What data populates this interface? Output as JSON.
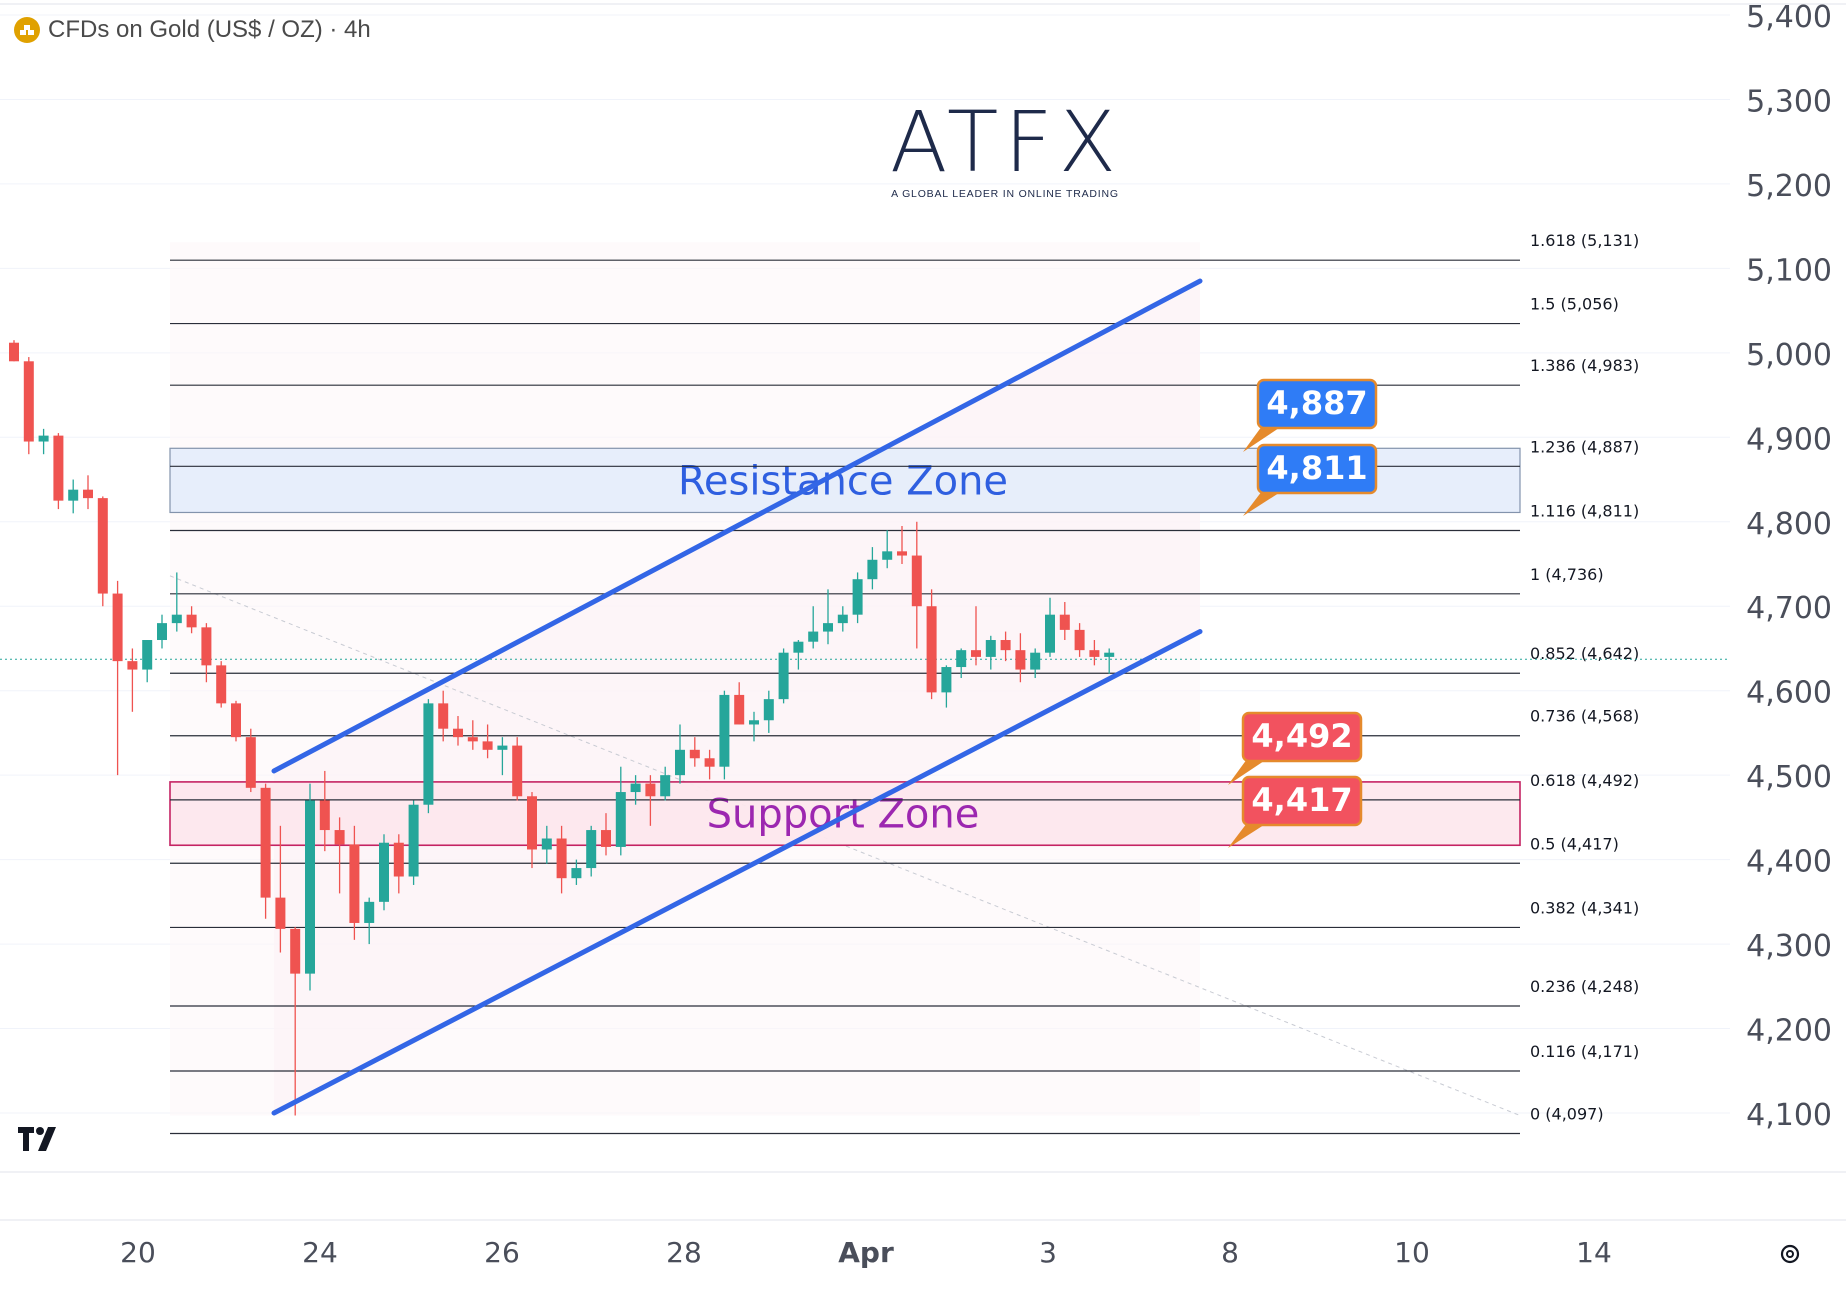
{
  "header": {
    "symbol_label": "CFDs on Gold (US$ / OZ) · 4h",
    "icon": "gold-bars-icon"
  },
  "logo": {
    "brand": "ATFX",
    "tagline": "A GLOBAL LEADER IN ONLINE TRADING"
  },
  "colors": {
    "up": "#26a69a",
    "down": "#ef5350",
    "trend_line": "#3366e6",
    "resistance_fill": "#e6eefb",
    "support_fill": "#fde8ee",
    "resistance_text": "#2f5fe0",
    "support_text": "#9c27b0",
    "label_blue": "#2f7cf6",
    "label_red": "#f2525f",
    "label_border": "#e58a2c"
  },
  "chart_data": {
    "type": "candlestick",
    "title": "CFDs on Gold (US$ / OZ) · 4h",
    "y_axis": {
      "ticks": [
        5400,
        5300,
        5200,
        5100,
        5000,
        4900,
        4800,
        4700,
        4600,
        4500,
        4400,
        4300,
        4200,
        4100
      ],
      "range": [
        4000,
        5450
      ]
    },
    "x_axis": {
      "ticks": [
        "20",
        "24",
        "26",
        "28",
        "Apr",
        "3",
        "8",
        "10",
        "14"
      ]
    },
    "current_price": 4642,
    "fibonacci_levels": [
      {
        "label": "1.618 (5,131)",
        "value": 5131
      },
      {
        "label": "1.5 (5,056)",
        "value": 5056
      },
      {
        "label": "1.386 (4,983)",
        "value": 4983
      },
      {
        "label": "1.236 (4,887)",
        "value": 4887
      },
      {
        "label": "1.116 (4,811)",
        "value": 4811
      },
      {
        "label": "1 (4,736)",
        "value": 4736
      },
      {
        "label": "0.852 (4,642)",
        "value": 4642
      },
      {
        "label": "0.736 (4,568)",
        "value": 4568
      },
      {
        "label": "0.618 (4,492)",
        "value": 4492
      },
      {
        "label": "0.5 (4,417)",
        "value": 4417
      },
      {
        "label": "0.382 (4,341)",
        "value": 4341
      },
      {
        "label": "0.236 (4,248)",
        "value": 4248
      },
      {
        "label": "0.116 (4,171)",
        "value": 4171
      },
      {
        "label": "0 (4,097)",
        "value": 4097
      }
    ],
    "zones": [
      {
        "name": "Resistance Zone",
        "from": 4811,
        "to": 4887
      },
      {
        "name": "Support Zone",
        "from": 4417,
        "to": 4492
      }
    ],
    "price_labels": [
      {
        "text": "4,887",
        "value": 4887,
        "kind": "resistance"
      },
      {
        "text": "4,811",
        "value": 4811,
        "kind": "resistance"
      },
      {
        "text": "4,492",
        "value": 4492,
        "kind": "support"
      },
      {
        "text": "4,417",
        "value": 4417,
        "kind": "support"
      }
    ],
    "channel": {
      "lower": [
        [
          0,
          4100
        ],
        [
          39.3,
          4670
        ]
      ],
      "upper": [
        [
          0,
          4505
        ],
        [
          39.3,
          5085
        ]
      ]
    },
    "candles_index_note": "index 0 = first candle at left edge, ~6 candles per day",
    "candles": [
      [
        5012,
        5015,
        4990,
        4990
      ],
      [
        4990,
        4995,
        4880,
        4895
      ],
      [
        4895,
        4910,
        4880,
        4902
      ],
      [
        4902,
        4905,
        4815,
        4825
      ],
      [
        4825,
        4850,
        4810,
        4838
      ],
      [
        4838,
        4855,
        4815,
        4828
      ],
      [
        4828,
        4830,
        4700,
        4715
      ],
      [
        4715,
        4730,
        4500,
        4635
      ],
      [
        4635,
        4650,
        4575,
        4625
      ],
      [
        4625,
        4660,
        4610,
        4660
      ],
      [
        4660,
        4690,
        4650,
        4680
      ],
      [
        4680,
        4740,
        4670,
        4690
      ],
      [
        4690,
        4700,
        4668,
        4675
      ],
      [
        4675,
        4680,
        4610,
        4630
      ],
      [
        4630,
        4635,
        4580,
        4585
      ],
      [
        4585,
        4588,
        4540,
        4545
      ],
      [
        4545,
        4555,
        4480,
        4485
      ],
      [
        4485,
        4490,
        4330,
        4355
      ],
      [
        4355,
        4440,
        4290,
        4318
      ],
      [
        4318,
        4320,
        4097,
        4265
      ],
      [
        4265,
        4490,
        4245,
        4470
      ],
      [
        4470,
        4505,
        4410,
        4435
      ],
      [
        4435,
        4450,
        4360,
        4418
      ],
      [
        4418,
        4440,
        4305,
        4325
      ],
      [
        4325,
        4355,
        4300,
        4350
      ],
      [
        4350,
        4430,
        4340,
        4420
      ],
      [
        4420,
        4430,
        4360,
        4380
      ],
      [
        4380,
        4470,
        4370,
        4465
      ],
      [
        4465,
        4590,
        4455,
        4585
      ],
      [
        4585,
        4600,
        4540,
        4555
      ],
      [
        4555,
        4570,
        4535,
        4545
      ],
      [
        4545,
        4565,
        4530,
        4540
      ],
      [
        4540,
        4560,
        4520,
        4530
      ],
      [
        4530,
        4545,
        4500,
        4535
      ],
      [
        4535,
        4545,
        4470,
        4475
      ],
      [
        4475,
        4480,
        4390,
        4412
      ],
      [
        4412,
        4440,
        4395,
        4425
      ],
      [
        4425,
        4440,
        4360,
        4378
      ],
      [
        4378,
        4400,
        4370,
        4390
      ],
      [
        4390,
        4440,
        4380,
        4435
      ],
      [
        4435,
        4455,
        4405,
        4415
      ],
      [
        4415,
        4510,
        4405,
        4480
      ],
      [
        4480,
        4500,
        4465,
        4490
      ],
      [
        4490,
        4500,
        4440,
        4475
      ],
      [
        4475,
        4510,
        4470,
        4500
      ],
      [
        4500,
        4560,
        4490,
        4530
      ],
      [
        4530,
        4545,
        4510,
        4520
      ],
      [
        4520,
        4530,
        4495,
        4510
      ],
      [
        4510,
        4600,
        4495,
        4595
      ],
      [
        4595,
        4610,
        4560,
        4560
      ],
      [
        4560,
        4575,
        4540,
        4565
      ],
      [
        4565,
        4600,
        4550,
        4590
      ],
      [
        4590,
        4650,
        4585,
        4645
      ],
      [
        4645,
        4660,
        4625,
        4658
      ],
      [
        4658,
        4700,
        4650,
        4670
      ],
      [
        4670,
        4720,
        4655,
        4680
      ],
      [
        4680,
        4700,
        4670,
        4690
      ],
      [
        4690,
        4740,
        4680,
        4732
      ],
      [
        4732,
        4770,
        4720,
        4755
      ],
      [
        4755,
        4790,
        4745,
        4765
      ],
      [
        4765,
        4795,
        4750,
        4760
      ],
      [
        4760,
        4800,
        4650,
        4700
      ],
      [
        4700,
        4720,
        4590,
        4598
      ],
      [
        4598,
        4630,
        4580,
        4628
      ],
      [
        4628,
        4650,
        4615,
        4648
      ],
      [
        4648,
        4700,
        4630,
        4640
      ],
      [
        4640,
        4665,
        4625,
        4660
      ],
      [
        4660,
        4670,
        4635,
        4648
      ],
      [
        4648,
        4668,
        4610,
        4625
      ],
      [
        4625,
        4650,
        4615,
        4645
      ],
      [
        4645,
        4710,
        4640,
        4690
      ],
      [
        4690,
        4705,
        4660,
        4672
      ],
      [
        4672,
        4680,
        4640,
        4648
      ],
      [
        4648,
        4660,
        4630,
        4640
      ],
      [
        4640,
        4650,
        4620,
        4645
      ]
    ]
  }
}
